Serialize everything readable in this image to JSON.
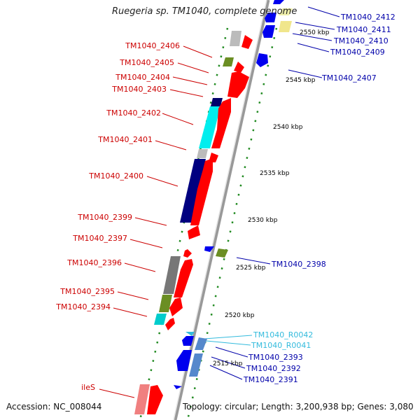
{
  "title": "Ruegeria sp. TM1040, complete genome",
  "footer": {
    "accession": "Accession: NC_008044",
    "topology": "Topology: circular; Length: 3,200,938 bp; Genes: 3,080"
  },
  "colors": {
    "left_labels": "#cc0000",
    "right_labels": "#0000aa",
    "rna_labels": "#33bbdd",
    "backbone": "#999999",
    "ruler_dots": "#228b22",
    "forward_gene": "#ff0000",
    "reverse_gene": "#0000ee"
  },
  "ticks": [
    "2550 kbp",
    "2545 kbp",
    "2540 kbp",
    "2535 kbp",
    "2530 kbp",
    "2525 kbp",
    "2520 kbp",
    "2515 kbp"
  ],
  "left_labels": [
    "TM1040_2406",
    "TM1040_2405",
    "TM1040_2404",
    "TM1040_2403",
    "TM1040_2402",
    "TM1040_2401",
    "TM1040_2400",
    "TM1040_2399",
    "TM1040_2397",
    "TM1040_2396",
    "TM1040_2395",
    "TM1040_2394",
    "ileS"
  ],
  "right_labels": [
    "TM1040_2412",
    "TM1040_2411",
    "TM1040_2410",
    "TM1040_2409",
    "TM1040_2407",
    "TM1040_2398",
    "TM1040_R0042",
    "TM1040_R0041",
    "TM1040_2393",
    "TM1040_2392",
    "TM1040_2391"
  ]
}
